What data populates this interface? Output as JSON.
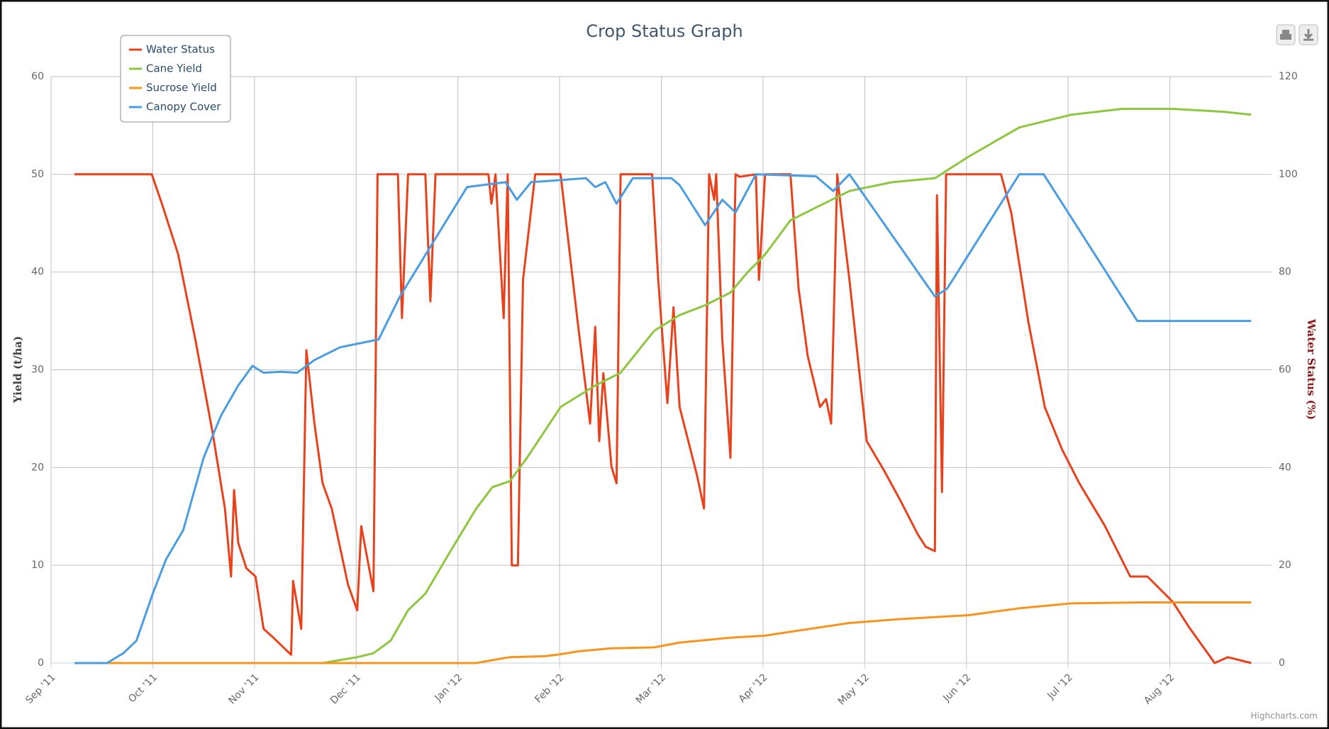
{
  "chart_data": {
    "type": "line",
    "title": "Crop Status Graph",
    "y_axis_label": "Yield (t/ha)",
    "y2_axis_label": "Water Status (%)",
    "credit": "Highcharts.com",
    "grid": true,
    "legend_position": "top-left",
    "xlim": [
      0,
      12
    ],
    "xticks": [
      {
        "value": 0,
        "label": "Sep '11"
      },
      {
        "value": 1,
        "label": "Oct '11"
      },
      {
        "value": 2,
        "label": "Nov '11"
      },
      {
        "value": 3,
        "label": "Dec '11"
      },
      {
        "value": 4,
        "label": "Jan '12"
      },
      {
        "value": 5,
        "label": "Feb '12"
      },
      {
        "value": 6,
        "label": "Mar '12"
      },
      {
        "value": 7,
        "label": "Apr '12"
      },
      {
        "value": 8,
        "label": "May '12"
      },
      {
        "value": 9,
        "label": "Jun '12"
      },
      {
        "value": 10,
        "label": "Jul '12"
      },
      {
        "value": 11,
        "label": "Aug '12"
      }
    ],
    "ylim": [
      0,
      60
    ],
    "yticks": [
      0,
      10,
      20,
      30,
      40,
      50,
      60
    ],
    "y2lim": [
      0,
      120
    ],
    "y2ticks": [
      0,
      20,
      40,
      60,
      80,
      100,
      120
    ],
    "series": [
      {
        "name": "Water Status",
        "color": "#e8411c",
        "axis": "y2",
        "x": [
          0.23,
          0.99,
          1.09,
          1.25,
          1.42,
          1.59,
          1.71,
          1.77,
          1.8,
          1.84,
          1.92,
          2.01,
          2.09,
          2.17,
          2.36,
          2.38,
          2.46,
          2.51,
          2.59,
          2.67,
          2.76,
          2.92,
          3.01,
          3.05,
          3.17,
          3.21,
          3.41,
          3.45,
          3.51,
          3.68,
          3.73,
          3.78,
          4.3,
          4.33,
          4.37,
          4.45,
          4.49,
          4.53,
          4.59,
          4.64,
          4.76,
          5.01,
          5.18,
          5.3,
          5.35,
          5.39,
          5.43,
          5.51,
          5.56,
          5.6,
          5.91,
          5.97,
          6.06,
          6.12,
          6.18,
          6.35,
          6.42,
          6.47,
          6.52,
          6.54,
          6.6,
          6.68,
          6.73,
          6.77,
          6.93,
          6.96,
          7.02,
          7.27,
          7.35,
          7.44,
          7.56,
          7.62,
          7.67,
          7.73,
          7.77,
          7.85,
          8.02,
          8.19,
          8.35,
          8.52,
          8.6,
          8.69,
          8.71,
          8.76,
          8.8,
          9.34,
          9.44,
          9.61,
          9.77,
          9.94,
          10.11,
          10.36,
          10.61,
          10.78,
          11.03,
          11.19,
          11.4,
          11.44,
          11.57,
          11.8
        ],
        "values": [
          100,
          100,
          94,
          83.6,
          66,
          47,
          31.6,
          17.7,
          35.4,
          24.6,
          19.4,
          17.7,
          7,
          5.5,
          1.7,
          16.8,
          7,
          64,
          49,
          36.8,
          31.6,
          16,
          10.8,
          28,
          14.7,
          100,
          100,
          70.6,
          100,
          100,
          74,
          100,
          100,
          94,
          100,
          70.6,
          100,
          20,
          20,
          78.4,
          100,
          100,
          69.4,
          49,
          68.8,
          45.4,
          59.3,
          40.2,
          36.8,
          100,
          100,
          78.4,
          53.2,
          72.8,
          52.4,
          38.5,
          31.6,
          100,
          94.8,
          100,
          66.2,
          42,
          100,
          99.5,
          100,
          78.4,
          100,
          100,
          76.6,
          62.8,
          52.4,
          54,
          49,
          100,
          92.2,
          78.4,
          45.4,
          39.4,
          33.3,
          26.4,
          23.8,
          22.9,
          95.7,
          35,
          100,
          100,
          92.2,
          69.7,
          52.4,
          43.7,
          36.8,
          28.1,
          17.7,
          17.7,
          12.5,
          7.3,
          1.2,
          0,
          1.2,
          0
        ]
      },
      {
        "name": "Cane Yield",
        "color": "#8dc63f",
        "x": [
          0.23,
          2.67,
          3.01,
          3.17,
          3.34,
          3.51,
          3.68,
          3.93,
          4.18,
          4.34,
          4.51,
          4.68,
          5.01,
          5.35,
          5.6,
          5.93,
          6.18,
          6.43,
          6.68,
          6.85,
          7.02,
          7.27,
          7.52,
          7.85,
          8.27,
          8.69,
          9.02,
          9.52,
          10.03,
          10.53,
          11.03,
          11.53,
          11.8
        ],
        "values": [
          0,
          0,
          0.6,
          1.0,
          2.3,
          5.4,
          7.1,
          11.5,
          15.8,
          18,
          18.6,
          21,
          26.2,
          28.4,
          29.7,
          34,
          35.6,
          36.6,
          37.9,
          40,
          41.8,
          45.3,
          46.6,
          48.3,
          49.2,
          49.6,
          51.8,
          54.8,
          56.1,
          56.7,
          56.7,
          56.4,
          56.1
        ]
      },
      {
        "name": "Sucrose Yield",
        "color": "#f7941d",
        "x": [
          0.23,
          4.18,
          4.34,
          4.51,
          4.85,
          5.01,
          5.18,
          5.51,
          5.93,
          6.18,
          6.68,
          7.02,
          7.27,
          7.85,
          8.35,
          9.02,
          9.52,
          10.03,
          10.69,
          11.8
        ],
        "values": [
          0,
          0,
          0.3,
          0.6,
          0.7,
          0.9,
          1.2,
          1.5,
          1.6,
          2.1,
          2.6,
          2.8,
          3.2,
          4.1,
          4.5,
          4.9,
          5.6,
          6.1,
          6.2,
          6.2
        ]
      },
      {
        "name": "Canopy Cover",
        "color": "#4a9de0",
        "x": [
          0.23,
          0.55,
          0.71,
          0.84,
          1.0,
          1.13,
          1.3,
          1.5,
          1.67,
          1.84,
          1.98,
          2.09,
          2.26,
          2.42,
          2.59,
          2.84,
          3.17,
          3.22,
          3.43,
          3.76,
          4.09,
          4.47,
          4.58,
          4.72,
          5.26,
          5.35,
          5.45,
          5.56,
          5.72,
          6.1,
          6.18,
          6.43,
          6.6,
          6.73,
          6.93,
          7.52,
          7.69,
          7.85,
          8.69,
          8.81,
          9.52,
          9.76,
          10.68,
          11.8
        ],
        "values": [
          0,
          0,
          1,
          2.3,
          7.1,
          10.6,
          13.6,
          21,
          25.3,
          28.4,
          30.4,
          29.7,
          29.8,
          29.7,
          31,
          32.3,
          33,
          33.1,
          37.5,
          43.1,
          48.7,
          49.2,
          47.4,
          49.2,
          49.6,
          48.7,
          49.2,
          47,
          49.6,
          49.6,
          48.9,
          44.8,
          47.4,
          46.1,
          50,
          49.8,
          48.3,
          50,
          37.5,
          38.3,
          50,
          50,
          35,
          35
        ]
      }
    ]
  }
}
